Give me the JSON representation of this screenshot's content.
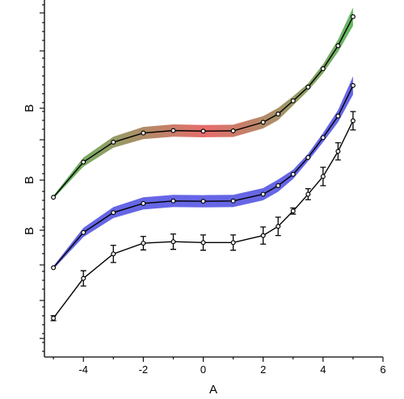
{
  "chart_data": {
    "type": "line",
    "xlabel": "A",
    "ylabel_segments": [
      "B",
      "B",
      "B"
    ],
    "xlim": [
      -5.3,
      6
    ],
    "ylim": [
      0,
      10
    ],
    "x_ticks": [
      -4,
      -2,
      0,
      2,
      4,
      6
    ],
    "grid": false,
    "legend": "none",
    "x": [
      -5,
      -4,
      -3,
      -2,
      -1,
      0,
      1,
      2,
      2.5,
      3,
      3.5,
      4,
      4.5,
      5
    ],
    "series": [
      {
        "band_gradient": [
          "#2ea02e",
          "#e03a3a",
          "#2ea02e"
        ],
        "values": [
          4.4,
          5.55,
          6.2,
          6.5,
          6.58,
          6.56,
          6.57,
          6.85,
          7.12,
          7.55,
          8.0,
          8.6,
          9.35,
          10.3
        ],
        "band": [
          0.05,
          0.15,
          0.18,
          0.2,
          0.2,
          0.2,
          0.2,
          0.2,
          0.2,
          0.15,
          0.12,
          0.15,
          0.2,
          0.3
        ]
      },
      {
        "band_color": "#3333dd",
        "values": [
          2.1,
          3.25,
          3.9,
          4.2,
          4.28,
          4.27,
          4.28,
          4.5,
          4.78,
          5.15,
          5.7,
          6.35,
          7.05,
          8.05
        ],
        "band": [
          0.05,
          0.15,
          0.18,
          0.2,
          0.2,
          0.2,
          0.2,
          0.2,
          0.2,
          0.15,
          0.12,
          0.15,
          0.2,
          0.3
        ]
      },
      {
        "values": [
          0.45,
          1.75,
          2.55,
          2.9,
          2.95,
          2.92,
          2.92,
          3.15,
          3.45,
          3.95,
          4.5,
          5.08,
          5.9,
          6.9
        ],
        "errors": [
          0.08,
          0.25,
          0.28,
          0.22,
          0.25,
          0.25,
          0.25,
          0.28,
          0.3,
          0.1,
          0.18,
          0.3,
          0.28,
          0.3
        ]
      }
    ]
  }
}
